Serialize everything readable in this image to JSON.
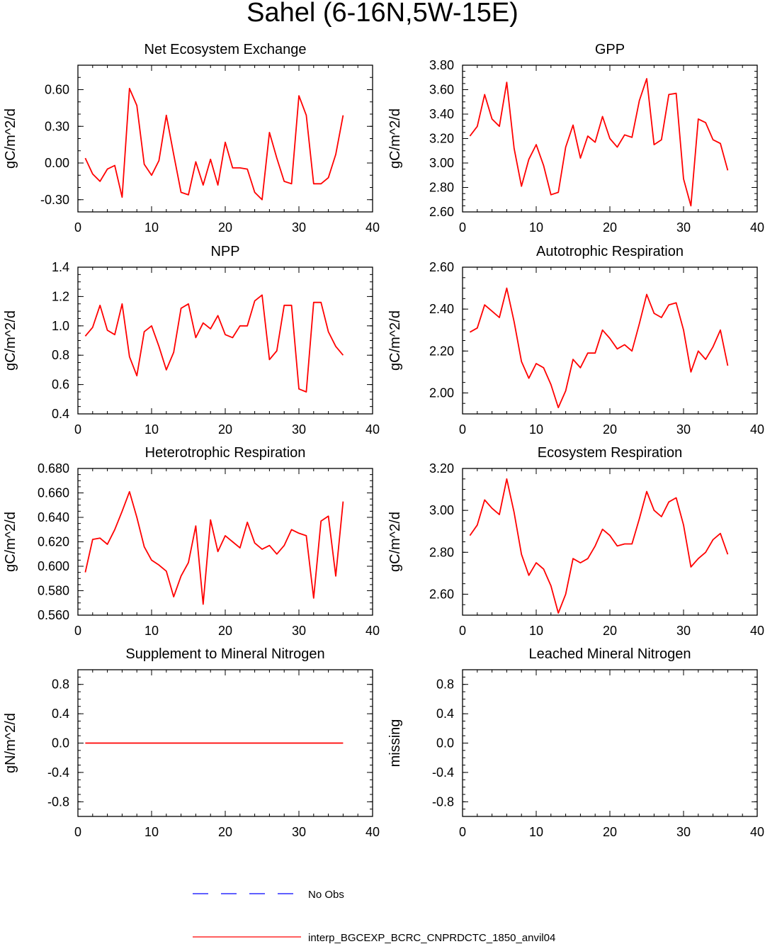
{
  "title": "Sahel (6-16N,5W-15E)",
  "colors": {
    "model": "#ff0000",
    "obs": "#0000ff",
    "axis": "#000000"
  },
  "legend": {
    "obs_label": "No Obs",
    "model_label": "interp_BGCEXP_BCRC_CNPRDCTC_1850_anvil04"
  },
  "chart_data": [
    {
      "type": "line",
      "title": "Net Ecosystem Exchange",
      "ylabel": "gC/m^2/d",
      "xlim": [
        0,
        40
      ],
      "ylim": [
        -0.4,
        0.8
      ],
      "xticks": [
        0,
        10,
        20,
        30,
        40
      ],
      "xtick_labels": [
        "0",
        "10",
        "20",
        "30",
        "40"
      ],
      "yticks": [
        -0.3,
        0,
        0.3,
        0.6
      ],
      "ytick_labels": [
        "-0.30",
        "0.00",
        "0.30",
        "0.60"
      ],
      "yminor": 0.1,
      "x": [
        1,
        2,
        3,
        4,
        5,
        6,
        7,
        8,
        9,
        10,
        11,
        12,
        13,
        14,
        15,
        16,
        17,
        18,
        19,
        20,
        21,
        22,
        23,
        24,
        25,
        26,
        27,
        28,
        29,
        30,
        31,
        32,
        33,
        34,
        35,
        36
      ],
      "series": [
        {
          "name": "interp_BGCEXP_BCRC_CNPRDCTC_1850_anvil04",
          "values": [
            0.04,
            -0.09,
            -0.15,
            -0.05,
            -0.02,
            -0.28,
            0.61,
            0.47,
            -0.01,
            -0.1,
            0.02,
            0.39,
            0.07,
            -0.24,
            -0.26,
            0.01,
            -0.18,
            0.03,
            -0.18,
            0.17,
            -0.04,
            -0.04,
            -0.05,
            -0.24,
            -0.3,
            0.25,
            0.04,
            -0.15,
            -0.17,
            0.55,
            0.39,
            -0.17,
            -0.17,
            -0.12,
            0.07,
            0.39
          ]
        }
      ]
    },
    {
      "type": "line",
      "title": "GPP",
      "ylabel": "gC/m^2/d",
      "xlim": [
        0,
        40
      ],
      "ylim": [
        2.6,
        3.8
      ],
      "xticks": [
        0,
        10,
        20,
        30,
        40
      ],
      "xtick_labels": [
        "0",
        "10",
        "20",
        "30",
        "40"
      ],
      "yticks": [
        2.6,
        2.8,
        3.0,
        3.2,
        3.4,
        3.6,
        3.8
      ],
      "ytick_labels": [
        "2.60",
        "2.80",
        "3.00",
        "3.20",
        "3.40",
        "3.60",
        "3.80"
      ],
      "yminor": 0.05,
      "x": [
        1,
        2,
        3,
        4,
        5,
        6,
        7,
        8,
        9,
        10,
        11,
        12,
        13,
        14,
        15,
        16,
        17,
        18,
        19,
        20,
        21,
        22,
        23,
        24,
        25,
        26,
        27,
        28,
        29,
        30,
        31,
        32,
        33,
        34,
        35,
        36
      ],
      "series": [
        {
          "name": "interp_BGCEXP_BCRC_CNPRDCTC_1850_anvil04",
          "values": [
            3.22,
            3.3,
            3.56,
            3.36,
            3.3,
            3.66,
            3.12,
            2.81,
            3.03,
            3.15,
            2.98,
            2.74,
            2.76,
            3.13,
            3.31,
            3.04,
            3.22,
            3.17,
            3.38,
            3.2,
            3.13,
            3.23,
            3.21,
            3.51,
            3.69,
            3.15,
            3.19,
            3.56,
            3.57,
            2.87,
            2.65,
            3.36,
            3.33,
            3.19,
            3.16,
            2.94
          ]
        }
      ]
    },
    {
      "type": "line",
      "title": "NPP",
      "ylabel": "gC/m^2/d",
      "xlim": [
        0,
        40
      ],
      "ylim": [
        0.4,
        1.4
      ],
      "xticks": [
        0,
        10,
        20,
        30,
        40
      ],
      "xtick_labels": [
        "0",
        "10",
        "20",
        "30",
        "40"
      ],
      "yticks": [
        0.4,
        0.6,
        0.8,
        1.0,
        1.2,
        1.4
      ],
      "ytick_labels": [
        "0.4",
        "0.6",
        "0.8",
        "1.0",
        "1.2",
        "1.4"
      ],
      "yminor": 0.05,
      "x": [
        1,
        2,
        3,
        4,
        5,
        6,
        7,
        8,
        9,
        10,
        11,
        12,
        13,
        14,
        15,
        16,
        17,
        18,
        19,
        20,
        21,
        22,
        23,
        24,
        25,
        26,
        27,
        28,
        29,
        30,
        31,
        32,
        33,
        34,
        35,
        36
      ],
      "series": [
        {
          "name": "interp_BGCEXP_BCRC_CNPRDCTC_1850_anvil04",
          "values": [
            0.93,
            0.99,
            1.14,
            0.97,
            0.94,
            1.15,
            0.79,
            0.66,
            0.96,
            1.0,
            0.86,
            0.7,
            0.82,
            1.12,
            1.15,
            0.92,
            1.02,
            0.98,
            1.07,
            0.94,
            0.92,
            1.0,
            1.0,
            1.17,
            1.21,
            0.77,
            0.83,
            1.14,
            1.14,
            0.57,
            0.55,
            1.16,
            1.16,
            0.96,
            0.86,
            0.8
          ]
        }
      ]
    },
    {
      "type": "line",
      "title": "Autotrophic Respiration",
      "ylabel": "gC/m^2/d",
      "xlim": [
        0,
        40
      ],
      "ylim": [
        1.9,
        2.6
      ],
      "xticks": [
        0,
        10,
        20,
        30,
        40
      ],
      "xtick_labels": [
        "0",
        "10",
        "20",
        "30",
        "40"
      ],
      "yticks": [
        2.0,
        2.2,
        2.4,
        2.6
      ],
      "ytick_labels": [
        "2.00",
        "2.20",
        "2.40",
        "2.60"
      ],
      "yminor": 0.05,
      "x": [
        1,
        2,
        3,
        4,
        5,
        6,
        7,
        8,
        9,
        10,
        11,
        12,
        13,
        14,
        15,
        16,
        17,
        18,
        19,
        20,
        21,
        22,
        23,
        24,
        25,
        26,
        27,
        28,
        29,
        30,
        31,
        32,
        33,
        34,
        35,
        36
      ],
      "series": [
        {
          "name": "interp_BGCEXP_BCRC_CNPRDCTC_1850_anvil04",
          "values": [
            2.29,
            2.31,
            2.42,
            2.39,
            2.36,
            2.5,
            2.34,
            2.15,
            2.07,
            2.14,
            2.12,
            2.04,
            1.93,
            2.01,
            2.16,
            2.12,
            2.19,
            2.19,
            2.3,
            2.26,
            2.21,
            2.23,
            2.2,
            2.33,
            2.47,
            2.38,
            2.36,
            2.42,
            2.43,
            2.3,
            2.1,
            2.2,
            2.16,
            2.22,
            2.3,
            2.13
          ]
        }
      ]
    },
    {
      "type": "line",
      "title": "Heterotrophic Respiration",
      "ylabel": "gC/m^2/d",
      "xlim": [
        0,
        40
      ],
      "ylim": [
        0.56,
        0.68
      ],
      "xticks": [
        0,
        10,
        20,
        30,
        40
      ],
      "xtick_labels": [
        "0",
        "10",
        "20",
        "30",
        "40"
      ],
      "yticks": [
        0.56,
        0.58,
        0.6,
        0.62,
        0.64,
        0.66,
        0.68
      ],
      "ytick_labels": [
        "0.560",
        "0.580",
        "0.600",
        "0.620",
        "0.640",
        "0.660",
        "0.680"
      ],
      "yminor": 0.005,
      "x": [
        1,
        2,
        3,
        4,
        5,
        6,
        7,
        8,
        9,
        10,
        11,
        12,
        13,
        14,
        15,
        16,
        17,
        18,
        19,
        20,
        21,
        22,
        23,
        24,
        25,
        26,
        27,
        28,
        29,
        30,
        31,
        32,
        33,
        34,
        35,
        36
      ],
      "series": [
        {
          "name": "interp_BGCEXP_BCRC_CNPRDCTC_1850_anvil04",
          "values": [
            0.595,
            0.622,
            0.623,
            0.618,
            0.63,
            0.645,
            0.661,
            0.64,
            0.616,
            0.605,
            0.601,
            0.596,
            0.575,
            0.592,
            0.603,
            0.633,
            0.569,
            0.638,
            0.612,
            0.625,
            0.62,
            0.615,
            0.636,
            0.619,
            0.614,
            0.617,
            0.61,
            0.617,
            0.63,
            0.627,
            0.625,
            0.574,
            0.637,
            0.641,
            0.592,
            0.653
          ]
        }
      ]
    },
    {
      "type": "line",
      "title": "Ecosystem Respiration",
      "ylabel": "gC/m^2/d",
      "xlim": [
        0,
        40
      ],
      "ylim": [
        2.5,
        3.2
      ],
      "xticks": [
        0,
        10,
        20,
        30,
        40
      ],
      "xtick_labels": [
        "0",
        "10",
        "20",
        "30",
        "40"
      ],
      "yticks": [
        2.6,
        2.8,
        3.0,
        3.2
      ],
      "ytick_labels": [
        "2.60",
        "2.80",
        "3.00",
        "3.20"
      ],
      "yminor": 0.05,
      "x": [
        1,
        2,
        3,
        4,
        5,
        6,
        7,
        8,
        9,
        10,
        11,
        12,
        13,
        14,
        15,
        16,
        17,
        18,
        19,
        20,
        21,
        22,
        23,
        24,
        25,
        26,
        27,
        28,
        29,
        30,
        31,
        32,
        33,
        34,
        35,
        36
      ],
      "series": [
        {
          "name": "interp_BGCEXP_BCRC_CNPRDCTC_1850_anvil04",
          "values": [
            2.88,
            2.93,
            3.05,
            3.01,
            2.98,
            3.15,
            2.99,
            2.79,
            2.69,
            2.75,
            2.72,
            2.64,
            2.51,
            2.6,
            2.77,
            2.75,
            2.77,
            2.83,
            2.91,
            2.88,
            2.83,
            2.84,
            2.84,
            2.96,
            3.09,
            3.0,
            2.97,
            3.04,
            3.06,
            2.93,
            2.73,
            2.77,
            2.8,
            2.86,
            2.89,
            2.79
          ]
        }
      ]
    },
    {
      "type": "line",
      "title": "Supplement to Mineral Nitrogen",
      "ylabel": "gN/m^2/d",
      "xlim": [
        0,
        40
      ],
      "ylim": [
        -1.0,
        1.0
      ],
      "xticks": [
        0,
        10,
        20,
        30,
        40
      ],
      "xtick_labels": [
        "0",
        "10",
        "20",
        "30",
        "40"
      ],
      "yticks": [
        -0.8,
        -0.4,
        0,
        0.4,
        0.8
      ],
      "ytick_labels": [
        "-0.8",
        "-0.4",
        "0.0",
        "0.4",
        "0.8"
      ],
      "yminor": 0.1,
      "x": [
        1,
        2,
        3,
        4,
        5,
        6,
        7,
        8,
        9,
        10,
        11,
        12,
        13,
        14,
        15,
        16,
        17,
        18,
        19,
        20,
        21,
        22,
        23,
        24,
        25,
        26,
        27,
        28,
        29,
        30,
        31,
        32,
        33,
        34,
        35,
        36
      ],
      "series": [
        {
          "name": "interp_BGCEXP_BCRC_CNPRDCTC_1850_anvil04",
          "values": [
            0,
            0,
            0,
            0,
            0,
            0,
            0,
            0,
            0,
            0,
            0,
            0,
            0,
            0,
            0,
            0,
            0,
            0,
            0,
            0,
            0,
            0,
            0,
            0,
            0,
            0,
            0,
            0,
            0,
            0,
            0,
            0,
            0,
            0,
            0,
            0
          ]
        }
      ]
    },
    {
      "type": "line",
      "title": "Leached Mineral Nitrogen",
      "ylabel": "missing",
      "xlim": [
        0,
        40
      ],
      "ylim": [
        -1.0,
        1.0
      ],
      "xticks": [
        0,
        10,
        20,
        30,
        40
      ],
      "xtick_labels": [
        "0",
        "10",
        "20",
        "30",
        "40"
      ],
      "yticks": [
        -0.8,
        -0.4,
        0,
        0.4,
        0.8
      ],
      "ytick_labels": [
        "-0.8",
        "-0.4",
        "0.0",
        "0.4",
        "0.8"
      ],
      "yminor": 0.1,
      "x": [],
      "series": []
    }
  ]
}
